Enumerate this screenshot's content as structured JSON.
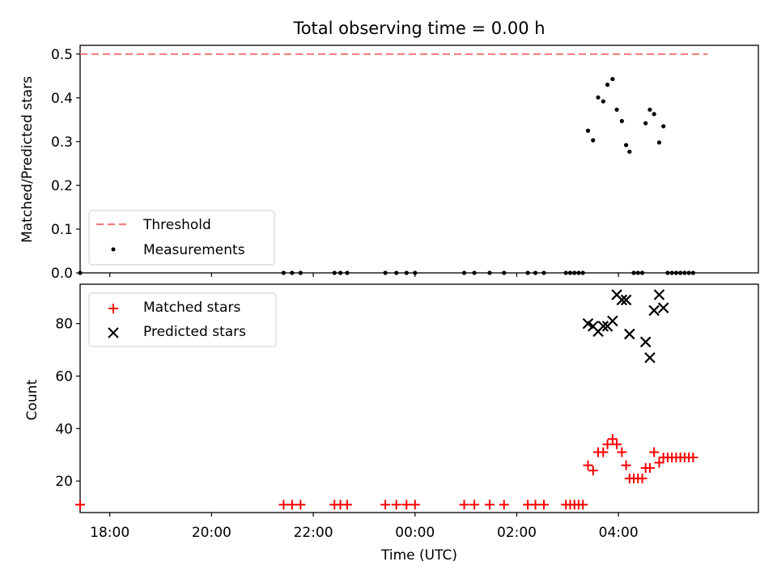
{
  "chart_data": [
    {
      "type": "line+scatter",
      "title": "Total observing time = 0.00 h",
      "ylabel": "Matched/Predicted stars",
      "xlabel": "",
      "xlim": [
        "17:25",
        "06:45"
      ],
      "ylim": [
        0,
        0.52
      ],
      "yticks": [
        "0.0",
        "0.1",
        "0.2",
        "0.3",
        "0.4",
        "0.5"
      ],
      "grid": false,
      "legend": {
        "placement": "lower-left",
        "entries": [
          "Threshold",
          "Measurements"
        ]
      },
      "colors": {
        "Threshold": "#f27b7b",
        "Measurements": "#000000"
      },
      "series": [
        {
          "name": "Threshold",
          "style": "dashed-line",
          "x": [
            "17:25",
            "05:45"
          ],
          "y": [
            0.5,
            0.5
          ]
        },
        {
          "name": "Measurements",
          "style": "points",
          "x": [
            "17:25",
            "21:25",
            "21:35",
            "21:45",
            "22:25",
            "22:32",
            "22:40",
            "23:25",
            "23:38",
            "23:50",
            "24:00",
            "00:58",
            "01:10",
            "01:28",
            "01:45",
            "02:13",
            "02:22",
            "02:32",
            "02:58",
            "03:03",
            "03:08",
            "03:13",
            "03:18",
            "03:24",
            "03:30",
            "03:36",
            "03:42",
            "03:47",
            "03:53",
            "03:58",
            "04:04",
            "04:09",
            "04:13",
            "04:18",
            "04:23",
            "04:28",
            "04:32",
            "04:37",
            "04:42",
            "04:48",
            "04:53",
            "04:58",
            "05:03",
            "05:08",
            "05:13",
            "05:18",
            "05:23",
            "05:28"
          ],
          "y": [
            0,
            0,
            0,
            0,
            0,
            0,
            0,
            0,
            0,
            0,
            0,
            0,
            0,
            0,
            0,
            0,
            0,
            0,
            0,
            0,
            0,
            0,
            0,
            0.325,
            0.303,
            0.401,
            0.392,
            0.43,
            0.443,
            0.373,
            0.347,
            0.292,
            0.277,
            0,
            0,
            0,
            0.342,
            0.373,
            0.363,
            0.298,
            0.335,
            0,
            0,
            0,
            0,
            0,
            0,
            0
          ]
        }
      ]
    },
    {
      "type": "scatter",
      "title": "",
      "ylabel": "Count",
      "xlabel": "Time (UTC)",
      "xlim": [
        "17:25",
        "06:45"
      ],
      "ylim": [
        8,
        95
      ],
      "yticks": [
        "20",
        "40",
        "60",
        "80"
      ],
      "xticks": [
        "18:00",
        "20:00",
        "22:00",
        "00:00",
        "02:00",
        "04:00"
      ],
      "grid": false,
      "legend": {
        "placement": "top-left",
        "entries": [
          "Matched stars",
          "Predicted stars"
        ]
      },
      "colors": {
        "Matched stars": "#ff0000",
        "Predicted stars": "#000000"
      },
      "series": [
        {
          "name": "Matched stars",
          "marker": "+",
          "x": [
            "17:25",
            "21:25",
            "21:35",
            "21:45",
            "22:25",
            "22:32",
            "22:40",
            "23:25",
            "23:38",
            "23:50",
            "24:00",
            "00:58",
            "01:10",
            "01:28",
            "01:45",
            "02:13",
            "02:22",
            "02:32",
            "02:58",
            "03:03",
            "03:08",
            "03:13",
            "03:18",
            "03:24",
            "03:30",
            "03:36",
            "03:42",
            "03:47",
            "03:53",
            "03:58",
            "04:04",
            "04:09",
            "04:13",
            "04:18",
            "04:23",
            "04:28",
            "04:32",
            "04:37",
            "04:42",
            "04:48",
            "04:53",
            "04:58",
            "05:03",
            "05:08",
            "05:13",
            "05:18",
            "05:23",
            "05:28"
          ],
          "y": [
            11,
            11,
            11,
            11,
            11,
            11,
            11,
            11,
            11,
            11,
            11,
            11,
            11,
            11,
            11,
            11,
            11,
            11,
            11,
            11,
            11,
            11,
            11,
            26,
            24,
            31,
            31,
            34,
            36,
            34,
            31,
            26,
            21,
            21,
            21,
            21,
            25,
            25,
            31,
            27,
            29,
            29,
            29,
            29,
            29,
            29,
            29,
            29
          ]
        },
        {
          "name": "Predicted stars",
          "marker": "x",
          "x": [
            "03:24",
            "03:30",
            "03:36",
            "03:42",
            "03:47",
            "03:53",
            "03:58",
            "04:04",
            "04:09",
            "04:13",
            "04:32",
            "04:37",
            "04:42",
            "04:48",
            "04:53"
          ],
          "y": [
            80,
            79,
            77,
            79,
            79,
            81,
            91,
            89,
            89,
            76,
            73,
            67,
            85,
            91,
            86
          ]
        }
      ]
    }
  ],
  "xticks_shared": [
    "18:00",
    "20:00",
    "22:00",
    "00:00",
    "02:00",
    "04:00"
  ]
}
